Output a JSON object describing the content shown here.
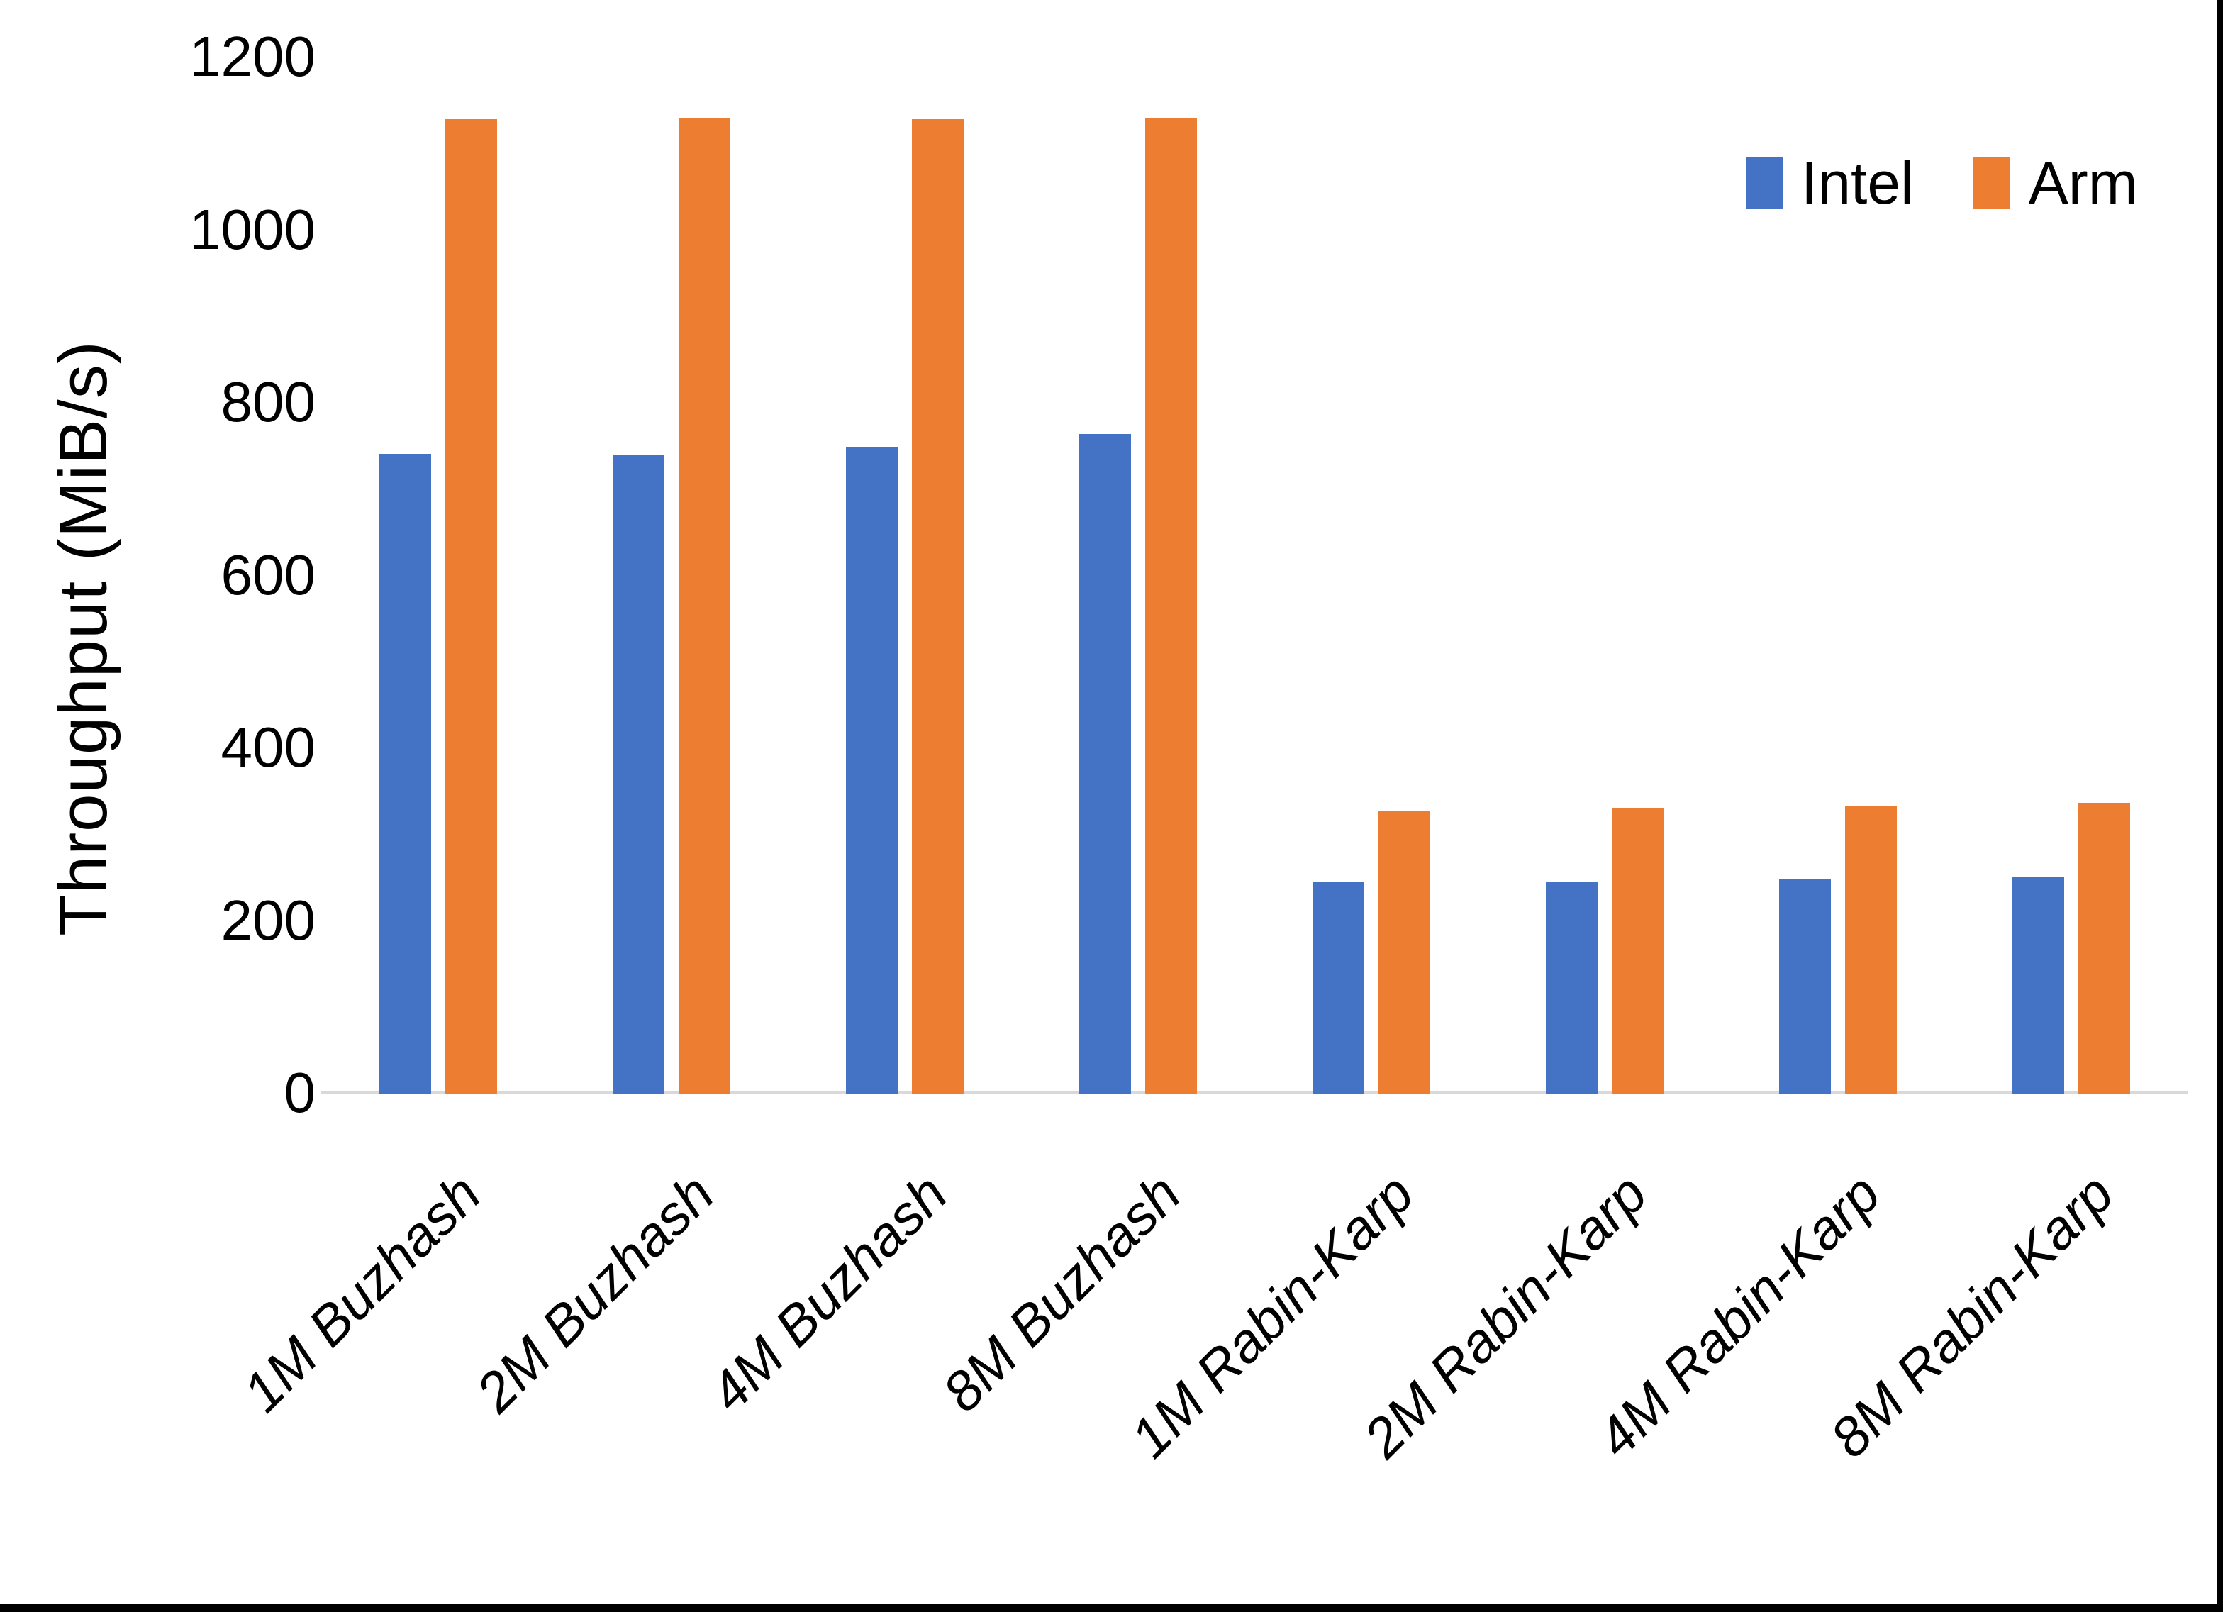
{
  "chart_data": {
    "type": "bar",
    "title": "",
    "xlabel": "",
    "ylabel": "Throughput (MiB/s)",
    "categories": [
      "1M Buzhash",
      "2M Buzhash",
      "4M Buzhash",
      "8M Buzhash",
      "1M Rabin-Karp",
      "2M Rabin-Karp",
      "4M Rabin-Karp",
      "8M Rabin-Karp"
    ],
    "series": [
      {
        "name": "Intel",
        "color": "#4472C4",
        "values": [
          740,
          738,
          748,
          763,
          245,
          245,
          248,
          250
        ]
      },
      {
        "name": "Arm",
        "color": "#ED7D31",
        "values": [
          1128,
          1129,
          1128,
          1129,
          327,
          330,
          333,
          336
        ]
      }
    ],
    "y_ticks": [
      0,
      200,
      400,
      600,
      800,
      1000,
      1200
    ],
    "ylim": [
      0,
      1200
    ],
    "grid": false,
    "legend_position": "top-right",
    "axis_line_color": "#D9D9D9",
    "text_color": "#000000",
    "background": "#FFFFFF"
  },
  "frame": {
    "right_edge_color": "#000000",
    "bottom_edge_color": "#000000"
  }
}
